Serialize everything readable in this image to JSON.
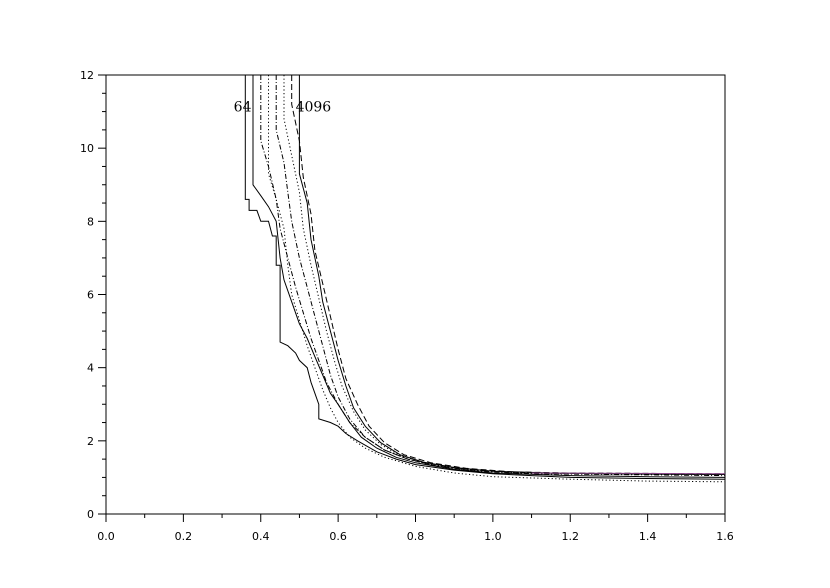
{
  "chart_data": {
    "type": "line",
    "title": "",
    "xlabel": "",
    "ylabel": "",
    "xlim": [
      0,
      1.6
    ],
    "ylim": [
      0,
      12
    ],
    "grid": false,
    "x_ticks": [
      "0.0",
      "0.2",
      "0.4",
      "0.6",
      "0.8",
      "1.0",
      "1.2",
      "1.4",
      "1.6"
    ],
    "y_ticks": [
      "0",
      "2",
      "4",
      "6",
      "8",
      "10",
      "12"
    ],
    "annotations": [
      {
        "text": "64",
        "x": 0.33,
        "y": 11.0
      },
      {
        "text": "4096",
        "x": 0.49,
        "y": 11.0
      }
    ],
    "series": [
      {
        "style": "solid",
        "color": "#000000",
        "points": [
          [
            0.36,
            12
          ],
          [
            0.36,
            8.6
          ],
          [
            0.37,
            8.6
          ],
          [
            0.37,
            8.3
          ],
          [
            0.39,
            8.3
          ],
          [
            0.4,
            8.0
          ],
          [
            0.42,
            8.0
          ],
          [
            0.43,
            7.6
          ],
          [
            0.44,
            7.6
          ],
          [
            0.44,
            6.8
          ],
          [
            0.45,
            6.8
          ],
          [
            0.45,
            4.7
          ],
          [
            0.47,
            4.6
          ],
          [
            0.49,
            4.4
          ],
          [
            0.5,
            4.2
          ],
          [
            0.52,
            4.0
          ],
          [
            0.53,
            3.6
          ],
          [
            0.54,
            3.3
          ],
          [
            0.55,
            3.0
          ],
          [
            0.55,
            2.6
          ],
          [
            0.58,
            2.5
          ],
          [
            0.6,
            2.4
          ],
          [
            0.62,
            2.2
          ],
          [
            0.65,
            2.0
          ],
          [
            0.7,
            1.7
          ],
          [
            0.75,
            1.5
          ],
          [
            0.8,
            1.35
          ],
          [
            0.9,
            1.2
          ],
          [
            1.0,
            1.1
          ],
          [
            1.1,
            1.05
          ],
          [
            1.2,
            1.0
          ],
          [
            1.4,
            0.97
          ],
          [
            1.6,
            0.95
          ]
        ]
      },
      {
        "style": "solid",
        "color": "#000000",
        "points": [
          [
            0.38,
            12
          ],
          [
            0.38,
            9.0
          ],
          [
            0.4,
            8.7
          ],
          [
            0.42,
            8.4
          ],
          [
            0.44,
            8.0
          ],
          [
            0.45,
            7.0
          ],
          [
            0.46,
            6.4
          ],
          [
            0.48,
            5.8
          ],
          [
            0.5,
            5.2
          ],
          [
            0.52,
            4.8
          ],
          [
            0.54,
            4.3
          ],
          [
            0.56,
            3.8
          ],
          [
            0.58,
            3.3
          ],
          [
            0.6,
            3.0
          ],
          [
            0.63,
            2.5
          ],
          [
            0.66,
            2.1
          ],
          [
            0.7,
            1.8
          ],
          [
            0.75,
            1.55
          ],
          [
            0.8,
            1.4
          ],
          [
            0.9,
            1.22
          ],
          [
            1.0,
            1.12
          ],
          [
            1.2,
            1.05
          ],
          [
            1.4,
            1.02
          ],
          [
            1.6,
            1.0
          ]
        ]
      },
      {
        "style": "dashdot",
        "color": "#000000",
        "points": [
          [
            0.4,
            12
          ],
          [
            0.4,
            10.2
          ],
          [
            0.42,
            9.5
          ],
          [
            0.44,
            8.6
          ],
          [
            0.45,
            7.8
          ],
          [
            0.47,
            7.0
          ],
          [
            0.49,
            6.2
          ],
          [
            0.51,
            5.5
          ],
          [
            0.53,
            4.8
          ],
          [
            0.55,
            4.2
          ],
          [
            0.57,
            3.6
          ],
          [
            0.6,
            3.0
          ],
          [
            0.63,
            2.5
          ],
          [
            0.67,
            2.1
          ],
          [
            0.72,
            1.75
          ],
          [
            0.78,
            1.5
          ],
          [
            0.85,
            1.32
          ],
          [
            0.95,
            1.18
          ],
          [
            1.1,
            1.1
          ],
          [
            1.3,
            1.08
          ],
          [
            1.6,
            1.05
          ]
        ]
      },
      {
        "style": "dotted",
        "color": "#000000",
        "points": [
          [
            0.42,
            12
          ],
          [
            0.42,
            9.3
          ],
          [
            0.44,
            8.6
          ],
          [
            0.46,
            7.8
          ],
          [
            0.47,
            6.8
          ],
          [
            0.48,
            6.0
          ],
          [
            0.5,
            5.3
          ],
          [
            0.52,
            4.6
          ],
          [
            0.54,
            4.0
          ],
          [
            0.56,
            3.4
          ],
          [
            0.58,
            2.9
          ],
          [
            0.6,
            2.5
          ],
          [
            0.63,
            2.1
          ],
          [
            0.67,
            1.8
          ],
          [
            0.72,
            1.55
          ],
          [
            0.8,
            1.3
          ],
          [
            0.9,
            1.12
          ],
          [
            1.0,
            1.02
          ],
          [
            1.2,
            0.95
          ],
          [
            1.4,
            0.9
          ],
          [
            1.6,
            0.88
          ]
        ]
      },
      {
        "style": "dashdot",
        "color": "#000000",
        "points": [
          [
            0.44,
            12
          ],
          [
            0.44,
            10.5
          ],
          [
            0.46,
            9.6
          ],
          [
            0.47,
            8.8
          ],
          [
            0.48,
            8.0
          ],
          [
            0.5,
            7.0
          ],
          [
            0.52,
            6.2
          ],
          [
            0.54,
            5.4
          ],
          [
            0.56,
            4.6
          ],
          [
            0.58,
            3.8
          ],
          [
            0.6,
            3.2
          ],
          [
            0.63,
            2.6
          ],
          [
            0.67,
            2.1
          ],
          [
            0.72,
            1.75
          ],
          [
            0.78,
            1.5
          ],
          [
            0.85,
            1.33
          ],
          [
            0.95,
            1.2
          ],
          [
            1.1,
            1.12
          ],
          [
            1.3,
            1.1
          ],
          [
            1.6,
            1.08
          ]
        ]
      },
      {
        "style": "dotted",
        "color": "#000000",
        "points": [
          [
            0.46,
            12
          ],
          [
            0.46,
            10.8
          ],
          [
            0.48,
            9.8
          ],
          [
            0.5,
            8.8
          ],
          [
            0.51,
            7.8
          ],
          [
            0.53,
            6.8
          ],
          [
            0.55,
            5.9
          ],
          [
            0.57,
            5.0
          ],
          [
            0.59,
            4.2
          ],
          [
            0.61,
            3.5
          ],
          [
            0.64,
            2.8
          ],
          [
            0.67,
            2.3
          ],
          [
            0.71,
            1.9
          ],
          [
            0.76,
            1.6
          ],
          [
            0.83,
            1.38
          ],
          [
            0.92,
            1.22
          ],
          [
            1.05,
            1.13
          ],
          [
            1.2,
            1.1
          ],
          [
            1.6,
            1.08
          ]
        ]
      },
      {
        "style": "dashed",
        "color": "#000000",
        "points": [
          [
            0.48,
            12
          ],
          [
            0.48,
            11.2
          ],
          [
            0.5,
            10.2
          ],
          [
            0.51,
            9.2
          ],
          [
            0.53,
            8.2
          ],
          [
            0.54,
            7.2
          ],
          [
            0.56,
            6.3
          ],
          [
            0.58,
            5.4
          ],
          [
            0.6,
            4.5
          ],
          [
            0.62,
            3.7
          ],
          [
            0.65,
            3.0
          ],
          [
            0.68,
            2.4
          ],
          [
            0.72,
            1.95
          ],
          [
            0.77,
            1.62
          ],
          [
            0.84,
            1.4
          ],
          [
            0.93,
            1.25
          ],
          [
            1.05,
            1.15
          ],
          [
            1.2,
            1.12
          ],
          [
            1.6,
            1.1
          ]
        ]
      },
      {
        "style": "solid",
        "color": "#000000",
        "points": [
          [
            0.5,
            12
          ],
          [
            0.5,
            9.3
          ],
          [
            0.52,
            8.5
          ],
          [
            0.53,
            7.5
          ],
          [
            0.55,
            6.5
          ],
          [
            0.56,
            5.8
          ],
          [
            0.58,
            5.0
          ],
          [
            0.6,
            4.2
          ],
          [
            0.62,
            3.5
          ],
          [
            0.64,
            2.9
          ],
          [
            0.67,
            2.4
          ],
          [
            0.71,
            1.95
          ],
          [
            0.76,
            1.62
          ],
          [
            0.82,
            1.42
          ],
          [
            0.9,
            1.27
          ],
          [
            1.0,
            1.17
          ],
          [
            1.15,
            1.12
          ],
          [
            1.3,
            1.1
          ],
          [
            1.6,
            1.08
          ]
        ]
      },
      {
        "style": "solid",
        "color": "#8a4a8a",
        "points": [
          [
            1.1,
            1.12
          ],
          [
            1.6,
            1.1
          ]
        ]
      }
    ]
  }
}
